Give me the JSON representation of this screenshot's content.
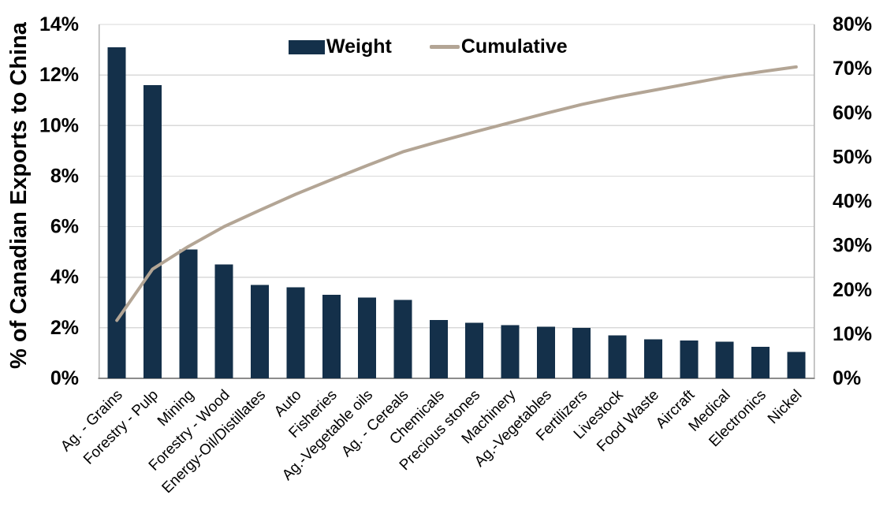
{
  "colors": {
    "bar": "#14304a",
    "line": "#b3a595",
    "grid": "#d9d9d9",
    "axis_side": "#b3b3b3",
    "axis_bottom": "#8c8c8c",
    "text": "#000000",
    "background": "#ffffff"
  },
  "chart_data": {
    "type": "bar+line (Pareto)",
    "categories": [
      "Ag. - Grains",
      "Forestry - Pulp",
      "Mining",
      "Forestry - Wood",
      "Energy-Oil/Distillates",
      "Auto",
      "Fisheries",
      "Ag.-Vegetable oils",
      "Ag. - Cereals",
      "Chemicals",
      "Precious stones",
      "Machinery",
      "Ag.-Vegetables",
      "Fertilizers",
      "Livestock",
      "Food Waste",
      "Aircraft",
      "Medical",
      "Electronics",
      "Nickel"
    ],
    "series": [
      {
        "name": "Weight",
        "type": "bar",
        "axis": "left",
        "values": [
          13.1,
          11.6,
          5.1,
          4.5,
          3.7,
          3.6,
          3.3,
          3.2,
          3.1,
          2.3,
          2.2,
          2.1,
          2.05,
          2.0,
          1.7,
          1.55,
          1.5,
          1.45,
          1.25,
          1.05
        ]
      },
      {
        "name": "Cumulative",
        "type": "line",
        "axis": "right",
        "values": [
          13.1,
          24.7,
          29.8,
          34.3,
          38.0,
          41.6,
          44.9,
          48.1,
          51.2,
          53.5,
          55.7,
          57.8,
          59.9,
          61.9,
          63.6,
          65.1,
          66.6,
          68.1,
          69.3,
          70.4
        ]
      }
    ],
    "left_axis": {
      "label": "% of Canadian Exports to China",
      "min": 0,
      "max": 14,
      "tick_values": [
        0,
        2,
        4,
        6,
        8,
        10,
        12,
        14
      ],
      "tick_labels": [
        "0%",
        "2%",
        "4%",
        "6%",
        "8%",
        "10%",
        "12%",
        "14%"
      ]
    },
    "right_axis": {
      "min": 0,
      "max": 80,
      "tick_values": [
        0,
        10,
        20,
        30,
        40,
        50,
        60,
        70,
        80
      ],
      "tick_labels": [
        "0%",
        "10%",
        "20%",
        "30%",
        "40%",
        "50%",
        "60%",
        "70%",
        "80%"
      ]
    },
    "grid": "horizontal gridlines on",
    "legend_position": "top-center-inside",
    "x_tick_rotation": 45
  }
}
